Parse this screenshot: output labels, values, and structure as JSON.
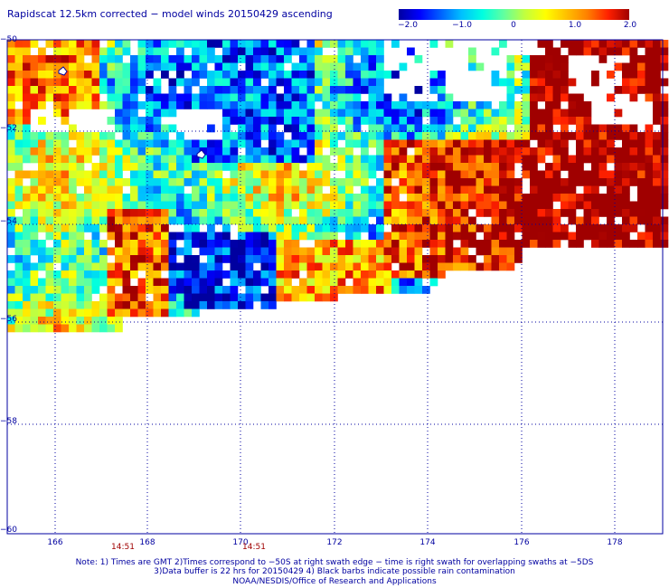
{
  "title": "Rapidscat 12.5km corrected − model winds 20150429 ascending",
  "colorbar": {
    "stops": [
      "#0000a0",
      "#0000ff",
      "#0060ff",
      "#00c0ff",
      "#00ffe0",
      "#60ffa0",
      "#c0ff40",
      "#ffff00",
      "#ffc000",
      "#ff8000",
      "#ff2000",
      "#a00000"
    ],
    "tick_labels": [
      "−2.0",
      "−1.0",
      "0",
      "1.0",
      "2.0"
    ],
    "min": -2.0,
    "max": 2.0
  },
  "axes": {
    "lat_labels": [
      "−50",
      "−52",
      "−54",
      "−56",
      "−58",
      "−60"
    ],
    "lon_labels": [
      "166",
      "168",
      "170",
      "172",
      "174",
      "176",
      "178"
    ],
    "lat_range": [
      -60,
      -50
    ],
    "lon_range": [
      165.2,
      178.9
    ],
    "grid": true
  },
  "times": [
    "14:51",
    "14:51"
  ],
  "notes": {
    "line1": "Note: 1) Times are GMT 2)Times correspond to −50S at right swath edge − time is right swath for overlapping swaths at −5DS",
    "line2": "3)Data buffer is 22 hrs for 20150429 4) Black barbs indicate possible rain contamination",
    "line3": "NOAA/NESDIS/Office of Research and Applications"
  }
}
